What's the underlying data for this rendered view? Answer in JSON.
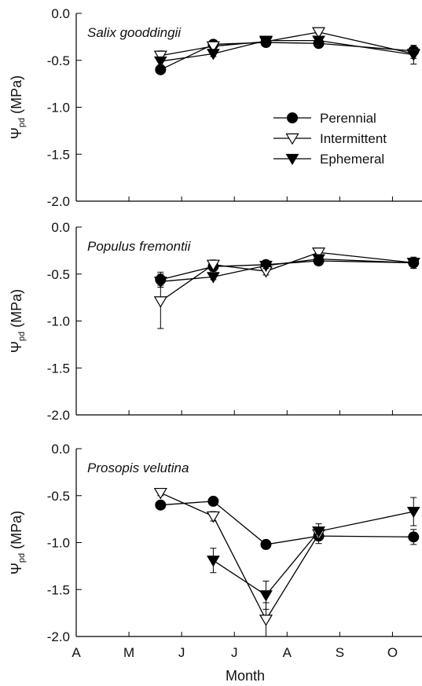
{
  "chart_data": {
    "type": "line",
    "x_axis": {
      "title": "Month",
      "ticks": [
        "A",
        "M",
        "J",
        "J",
        "A",
        "S",
        "O"
      ]
    },
    "y_axis": {
      "label": "Ψ",
      "label_sub": "pd",
      "label_unit": "(MPa)",
      "ylim": [
        -2.0,
        0.0
      ],
      "ticks": [
        "0.0",
        "-0.5",
        "-1.0",
        "-1.5",
        "-2.0"
      ]
    },
    "legend": {
      "placement": "inside top panel, right",
      "entries": [
        {
          "name": "Perennial",
          "marker": "filled-circle"
        },
        {
          "name": "Intermittent",
          "marker": "open-down-triangle"
        },
        {
          "name": "Ephemeral",
          "marker": "filled-down-triangle"
        }
      ]
    },
    "panels": [
      {
        "species": "Salix gooddingii",
        "series": [
          {
            "name": "Perennial",
            "x": [
              1.6,
              2.6,
              3.6,
              4.6,
              6.4
            ],
            "y": [
              -0.6,
              -0.33,
              -0.31,
              -0.32,
              -0.4
            ],
            "err": [
              0.04,
              0.03,
              0.03,
              0.03,
              0.04
            ]
          },
          {
            "name": "Intermittent",
            "x": [
              1.6,
              2.6,
              3.6,
              4.6,
              6.4
            ],
            "y": [
              -0.45,
              -0.35,
              -0.3,
              -0.2,
              -0.43
            ],
            "err": [
              0.05,
              0.03,
              0.02,
              0.02,
              0.05
            ]
          },
          {
            "name": "Ephemeral",
            "x": [
              1.6,
              2.6,
              3.6,
              4.6,
              6.4
            ],
            "y": [
              -0.51,
              -0.43,
              -0.29,
              -0.29,
              -0.44
            ],
            "err": [
              0.04,
              0.03,
              0.02,
              0.02,
              0.1
            ]
          }
        ]
      },
      {
        "species": "Populus fremontii",
        "series": [
          {
            "name": "Perennial",
            "x": [
              1.6,
              2.6,
              3.6,
              4.6,
              6.4
            ],
            "y": [
              -0.56,
              -0.42,
              -0.4,
              -0.36,
              -0.38
            ],
            "err": [
              0.08,
              0.05,
              0.04,
              0.03,
              0.03
            ]
          },
          {
            "name": "Intermittent",
            "x": [
              1.6,
              2.6,
              3.6,
              4.6,
              6.4
            ],
            "y": [
              -0.79,
              -0.4,
              -0.47,
              -0.27,
              -0.38
            ],
            "err": [
              0.29,
              0.05,
              0.04,
              0.03,
              0.03
            ]
          },
          {
            "name": "Ephemeral",
            "x": [
              1.6,
              2.6,
              3.6,
              4.6,
              6.4
            ],
            "y": [
              -0.58,
              -0.53,
              -0.41,
              -0.34,
              -0.38
            ],
            "err": [
              0.04,
              0.03,
              0.03,
              0.03,
              0.06
            ]
          }
        ]
      },
      {
        "species": "Prosopis velutina",
        "series": [
          {
            "name": "Perennial",
            "x": [
              1.6,
              2.6,
              3.6,
              4.6,
              6.4
            ],
            "y": [
              -0.6,
              -0.56,
              -1.02,
              -0.93,
              -0.94
            ],
            "err": [
              0.03,
              0.04,
              0.04,
              0.08,
              0.08
            ]
          },
          {
            "name": "Intermittent",
            "x": [
              1.6,
              2.6,
              3.6,
              4.6
            ],
            "y": [
              -0.47,
              -0.72,
              -1.82,
              -0.91
            ],
            "err": [
              0.03,
              0.05,
              0.18,
              0.06
            ]
          },
          {
            "name": "Ephemeral",
            "x": [
              2.6,
              3.6,
              4.6,
              6.4
            ],
            "y": [
              -1.19,
              -1.56,
              -0.88,
              -0.67
            ],
            "err": [
              0.13,
              0.15,
              0.08,
              0.15
            ]
          }
        ]
      }
    ]
  }
}
